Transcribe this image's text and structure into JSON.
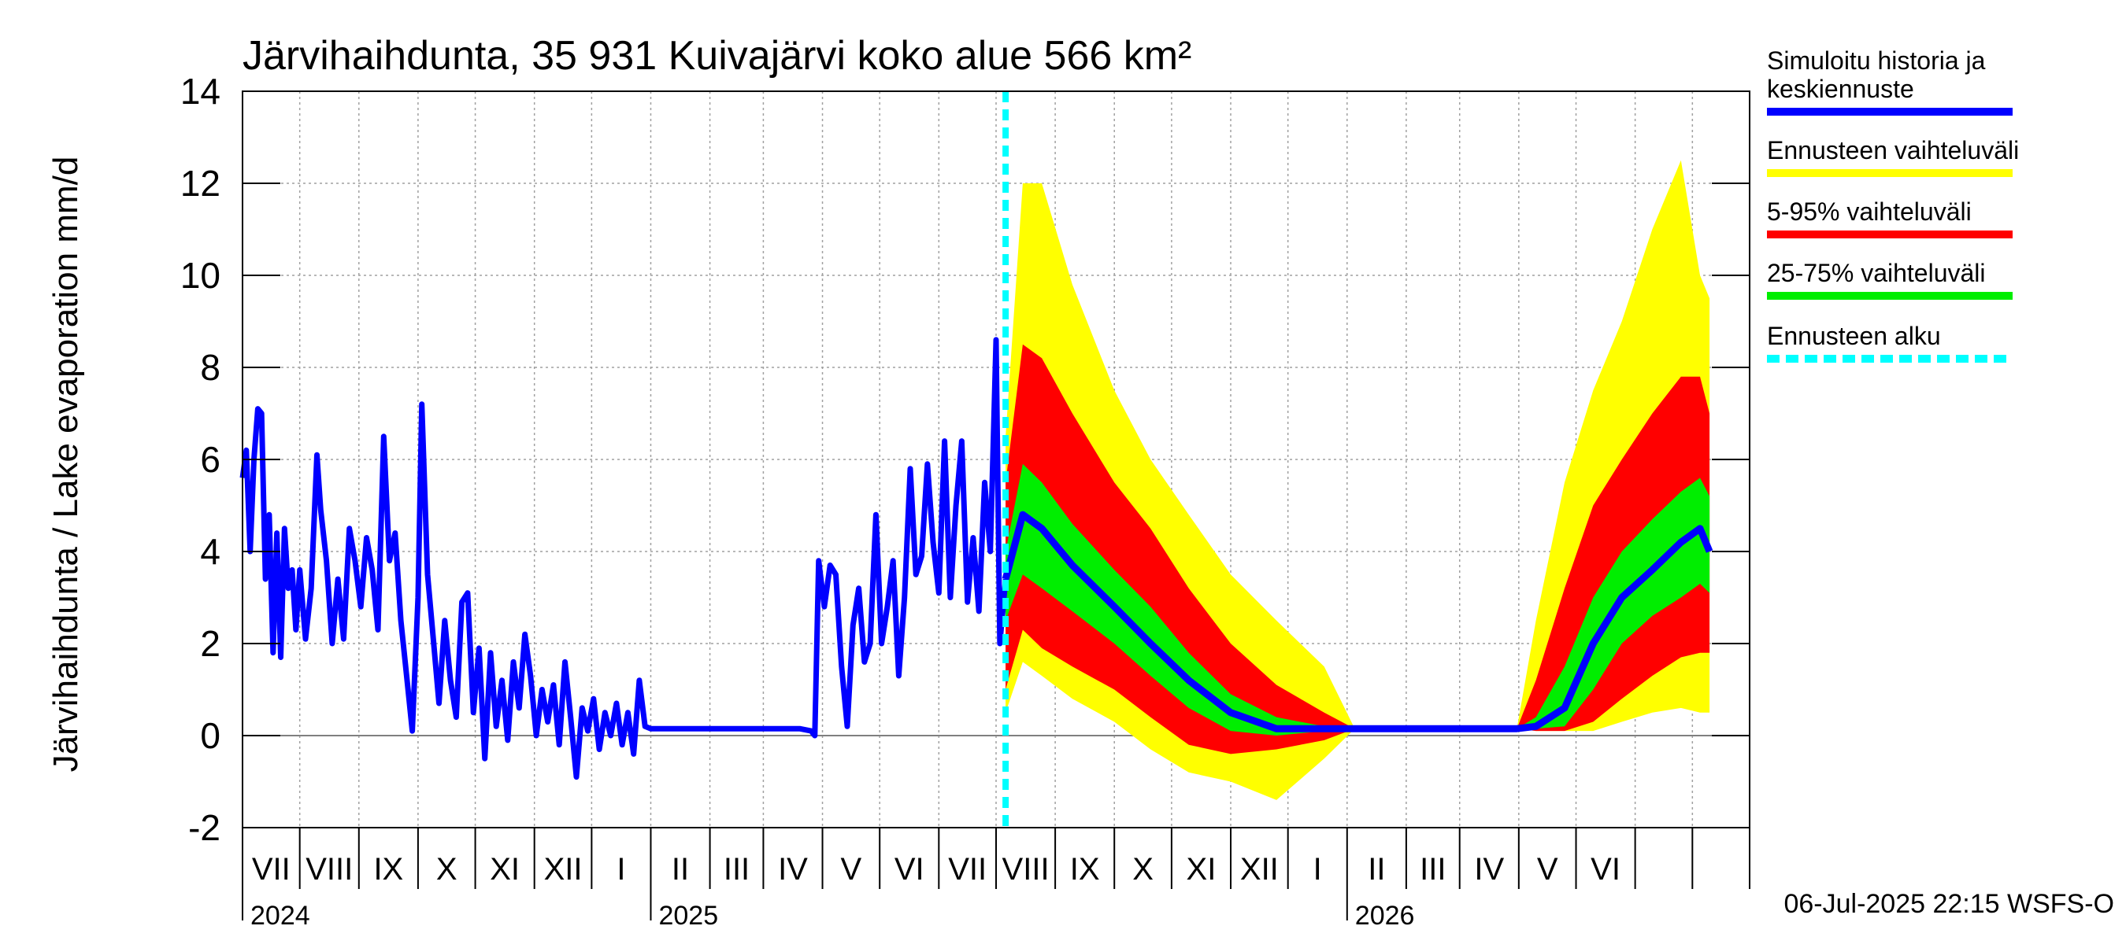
{
  "chart_data": {
    "type": "area",
    "title": "Järvihaihdunta, 35 931 Kuivajärvi koko alue 566 km²",
    "ylabel": "Järvihaihdunta / Lake evaporation   mm/d",
    "xlabel": "",
    "ylim": [
      -2,
      14
    ],
    "xlim": [
      "2024-06-01",
      "2026-07-31"
    ],
    "yticks": [
      "-2",
      "0",
      "2",
      "4",
      "6",
      "8",
      "10",
      "12",
      "14"
    ],
    "month_labels": [
      "VII",
      "VIII",
      "IX",
      "X",
      "XI",
      "XII",
      "I",
      "II",
      "III",
      "IV",
      "V",
      "VI",
      "VII",
      "VIII",
      "IX",
      "X",
      "XI",
      "XII",
      "I",
      "II",
      "III",
      "IV",
      "V",
      "VI"
    ],
    "year_labels": [
      "2024",
      "2025",
      "2026"
    ],
    "grid": true,
    "legend_position": "right",
    "forecast_start": "2025-07-06",
    "footer": "06-Jul-2025 22:15 WSFS-O",
    "legend": [
      {
        "label": "Simuloitu historia ja keskiennuste",
        "color": "#0000ff",
        "style": "solid"
      },
      {
        "label": "Ennusteen vaihteluväli",
        "color": "#ffff00",
        "style": "solid"
      },
      {
        "label": "5-95% vaihteluväli",
        "color": "#ff0000",
        "style": "solid"
      },
      {
        "label": "25-75% vaihteluväli",
        "color": "#00ee00",
        "style": "solid"
      },
      {
        "label": "Ennusteen alku",
        "color": "#00ffff",
        "style": "dashed"
      }
    ],
    "history": [
      [
        "2024-06-01",
        5.6
      ],
      [
        "2024-06-03",
        6.2
      ],
      [
        "2024-06-05",
        4.0
      ],
      [
        "2024-06-07",
        6.0
      ],
      [
        "2024-06-09",
        7.1
      ],
      [
        "2024-06-11",
        7.0
      ],
      [
        "2024-06-13",
        3.4
      ],
      [
        "2024-06-15",
        4.8
      ],
      [
        "2024-06-17",
        1.8
      ],
      [
        "2024-06-19",
        4.4
      ],
      [
        "2024-06-21",
        1.7
      ],
      [
        "2024-06-23",
        4.5
      ],
      [
        "2024-06-25",
        3.2
      ],
      [
        "2024-06-27",
        3.6
      ],
      [
        "2024-06-29",
        2.3
      ],
      [
        "2024-07-01",
        3.6
      ],
      [
        "2024-07-04",
        2.1
      ],
      [
        "2024-07-07",
        3.2
      ],
      [
        "2024-07-10",
        6.1
      ],
      [
        "2024-07-12",
        4.9
      ],
      [
        "2024-07-15",
        3.8
      ],
      [
        "2024-07-18",
        2.0
      ],
      [
        "2024-07-21",
        3.4
      ],
      [
        "2024-07-24",
        2.1
      ],
      [
        "2024-07-27",
        4.5
      ],
      [
        "2024-07-30",
        3.8
      ],
      [
        "2024-08-02",
        2.8
      ],
      [
        "2024-08-05",
        4.3
      ],
      [
        "2024-08-08",
        3.6
      ],
      [
        "2024-08-11",
        2.3
      ],
      [
        "2024-08-14",
        6.5
      ],
      [
        "2024-08-17",
        3.8
      ],
      [
        "2024-08-20",
        4.4
      ],
      [
        "2024-08-23",
        2.5
      ],
      [
        "2024-08-26",
        1.3
      ],
      [
        "2024-08-29",
        0.1
      ],
      [
        "2024-09-01",
        3.0
      ],
      [
        "2024-09-03",
        7.2
      ],
      [
        "2024-09-06",
        3.5
      ],
      [
        "2024-09-09",
        2.1
      ],
      [
        "2024-09-12",
        0.7
      ],
      [
        "2024-09-15",
        2.5
      ],
      [
        "2024-09-18",
        1.2
      ],
      [
        "2024-09-21",
        0.4
      ],
      [
        "2024-09-24",
        2.9
      ],
      [
        "2024-09-27",
        3.1
      ],
      [
        "2024-09-30",
        0.5
      ],
      [
        "2024-10-03",
        1.9
      ],
      [
        "2024-10-06",
        -0.5
      ],
      [
        "2024-10-09",
        1.8
      ],
      [
        "2024-10-12",
        0.2
      ],
      [
        "2024-10-15",
        1.2
      ],
      [
        "2024-10-18",
        -0.1
      ],
      [
        "2024-10-21",
        1.6
      ],
      [
        "2024-10-24",
        0.6
      ],
      [
        "2024-10-27",
        2.2
      ],
      [
        "2024-10-30",
        1.3
      ],
      [
        "2024-11-02",
        0.0
      ],
      [
        "2024-11-05",
        1.0
      ],
      [
        "2024-11-08",
        0.3
      ],
      [
        "2024-11-11",
        1.1
      ],
      [
        "2024-11-14",
        -0.2
      ],
      [
        "2024-11-17",
        1.6
      ],
      [
        "2024-11-20",
        0.4
      ],
      [
        "2024-11-23",
        -0.9
      ],
      [
        "2024-11-26",
        0.6
      ],
      [
        "2024-11-29",
        0.1
      ],
      [
        "2024-12-02",
        0.8
      ],
      [
        "2024-12-05",
        -0.3
      ],
      [
        "2024-12-08",
        0.5
      ],
      [
        "2024-12-11",
        0.0
      ],
      [
        "2024-12-14",
        0.7
      ],
      [
        "2024-12-17",
        -0.2
      ],
      [
        "2024-12-20",
        0.5
      ],
      [
        "2024-12-23",
        -0.4
      ],
      [
        "2024-12-26",
        1.2
      ],
      [
        "2024-12-29",
        0.2
      ],
      [
        "2025-01-01",
        0.15
      ],
      [
        "2025-01-20",
        0.15
      ],
      [
        "2025-02-10",
        0.15
      ],
      [
        "2025-03-01",
        0.15
      ],
      [
        "2025-03-20",
        0.15
      ],
      [
        "2025-03-26",
        0.1
      ],
      [
        "2025-03-28",
        0.0
      ],
      [
        "2025-03-30",
        3.8
      ],
      [
        "2025-04-02",
        2.8
      ],
      [
        "2025-04-05",
        3.7
      ],
      [
        "2025-04-08",
        3.5
      ],
      [
        "2025-04-11",
        1.5
      ],
      [
        "2025-04-14",
        0.2
      ],
      [
        "2025-04-17",
        2.4
      ],
      [
        "2025-04-20",
        3.2
      ],
      [
        "2025-04-23",
        1.6
      ],
      [
        "2025-04-26",
        2.0
      ],
      [
        "2025-04-29",
        4.8
      ],
      [
        "2025-05-02",
        2.0
      ],
      [
        "2025-05-05",
        2.8
      ],
      [
        "2025-05-08",
        3.8
      ],
      [
        "2025-05-11",
        1.3
      ],
      [
        "2025-05-14",
        3.0
      ],
      [
        "2025-05-17",
        5.8
      ],
      [
        "2025-05-20",
        3.5
      ],
      [
        "2025-05-23",
        3.9
      ],
      [
        "2025-05-26",
        5.9
      ],
      [
        "2025-05-29",
        4.2
      ],
      [
        "2025-06-01",
        3.1
      ],
      [
        "2025-06-04",
        6.4
      ],
      [
        "2025-06-07",
        3.0
      ],
      [
        "2025-06-10",
        5.0
      ],
      [
        "2025-06-13",
        6.4
      ],
      [
        "2025-06-16",
        2.9
      ],
      [
        "2025-06-19",
        4.3
      ],
      [
        "2025-06-22",
        2.7
      ],
      [
        "2025-06-25",
        5.5
      ],
      [
        "2025-06-28",
        4.0
      ],
      [
        "2025-07-01",
        8.6
      ],
      [
        "2025-07-03",
        2.0
      ],
      [
        "2025-07-06",
        3.4
      ]
    ],
    "forecast": [
      {
        "x": "2025-07-06",
        "mean": 3.4,
        "p25": 2.5,
        "p75": 4.0,
        "p5": 1.0,
        "p95": 5.5,
        "min": 0.5,
        "max": 6.5
      },
      {
        "x": "2025-07-15",
        "mean": 4.8,
        "p25": 3.5,
        "p75": 5.9,
        "p5": 2.3,
        "p95": 8.5,
        "min": 1.6,
        "max": 12.0
      },
      {
        "x": "2025-07-25",
        "mean": 4.5,
        "p25": 3.2,
        "p75": 5.5,
        "p5": 1.9,
        "p95": 8.2,
        "min": 1.3,
        "max": 12.0
      },
      {
        "x": "2025-08-10",
        "mean": 3.7,
        "p25": 2.7,
        "p75": 4.6,
        "p5": 1.5,
        "p95": 7.0,
        "min": 0.8,
        "max": 9.8
      },
      {
        "x": "2025-09-01",
        "mean": 2.8,
        "p25": 2.0,
        "p75": 3.6,
        "p5": 1.0,
        "p95": 5.5,
        "min": 0.3,
        "max": 7.5
      },
      {
        "x": "2025-09-20",
        "mean": 2.0,
        "p25": 1.3,
        "p75": 2.8,
        "p5": 0.4,
        "p95": 4.5,
        "min": -0.3,
        "max": 6.0
      },
      {
        "x": "2025-10-10",
        "mean": 1.2,
        "p25": 0.6,
        "p75": 1.8,
        "p5": -0.2,
        "p95": 3.2,
        "min": -0.8,
        "max": 4.8
      },
      {
        "x": "2025-11-01",
        "mean": 0.5,
        "p25": 0.1,
        "p75": 0.9,
        "p5": -0.4,
        "p95": 2.0,
        "min": -1.0,
        "max": 3.5
      },
      {
        "x": "2025-11-25",
        "mean": 0.15,
        "p25": 0.0,
        "p75": 0.4,
        "p5": -0.3,
        "p95": 1.1,
        "min": -1.4,
        "max": 2.5
      },
      {
        "x": "2025-12-20",
        "mean": 0.15,
        "p25": 0.1,
        "p75": 0.2,
        "p5": -0.1,
        "p95": 0.5,
        "min": -0.5,
        "max": 1.5
      },
      {
        "x": "2026-01-05",
        "mean": 0.15,
        "p25": 0.15,
        "p75": 0.15,
        "p5": 0.15,
        "p95": 0.15,
        "min": 0.15,
        "max": 0.15
      },
      {
        "x": "2026-03-31",
        "mean": 0.15,
        "p25": 0.15,
        "p75": 0.15,
        "p5": 0.15,
        "p95": 0.15,
        "min": 0.15,
        "max": 0.15
      },
      {
        "x": "2026-04-10",
        "mean": 0.2,
        "p25": 0.15,
        "p75": 0.4,
        "p5": 0.1,
        "p95": 1.2,
        "min": 0.1,
        "max": 2.5
      },
      {
        "x": "2026-04-25",
        "mean": 0.6,
        "p25": 0.2,
        "p75": 1.5,
        "p5": 0.1,
        "p95": 3.2,
        "min": 0.1,
        "max": 5.5
      },
      {
        "x": "2026-05-10",
        "mean": 2.0,
        "p25": 1.0,
        "p75": 3.0,
        "p5": 0.3,
        "p95": 5.0,
        "min": 0.1,
        "max": 7.5
      },
      {
        "x": "2026-05-25",
        "mean": 3.0,
        "p25": 2.0,
        "p75": 4.0,
        "p5": 0.8,
        "p95": 6.0,
        "min": 0.3,
        "max": 9.0
      },
      {
        "x": "2026-06-10",
        "mean": 3.6,
        "p25": 2.6,
        "p75": 4.7,
        "p5": 1.3,
        "p95": 7.0,
        "min": 0.5,
        "max": 11.0
      },
      {
        "x": "2026-06-25",
        "mean": 4.2,
        "p25": 3.0,
        "p75": 5.3,
        "p5": 1.7,
        "p95": 7.8,
        "min": 0.6,
        "max": 12.5
      },
      {
        "x": "2026-07-05",
        "mean": 4.5,
        "p25": 3.3,
        "p75": 5.6,
        "p5": 1.8,
        "p95": 7.8,
        "min": 0.5,
        "max": 10.0
      },
      {
        "x": "2026-07-10",
        "mean": 4.0,
        "p25": 3.1,
        "p75": 5.2,
        "p5": 1.8,
        "p95": 7.0,
        "min": 0.5,
        "max": 9.5
      }
    ]
  }
}
